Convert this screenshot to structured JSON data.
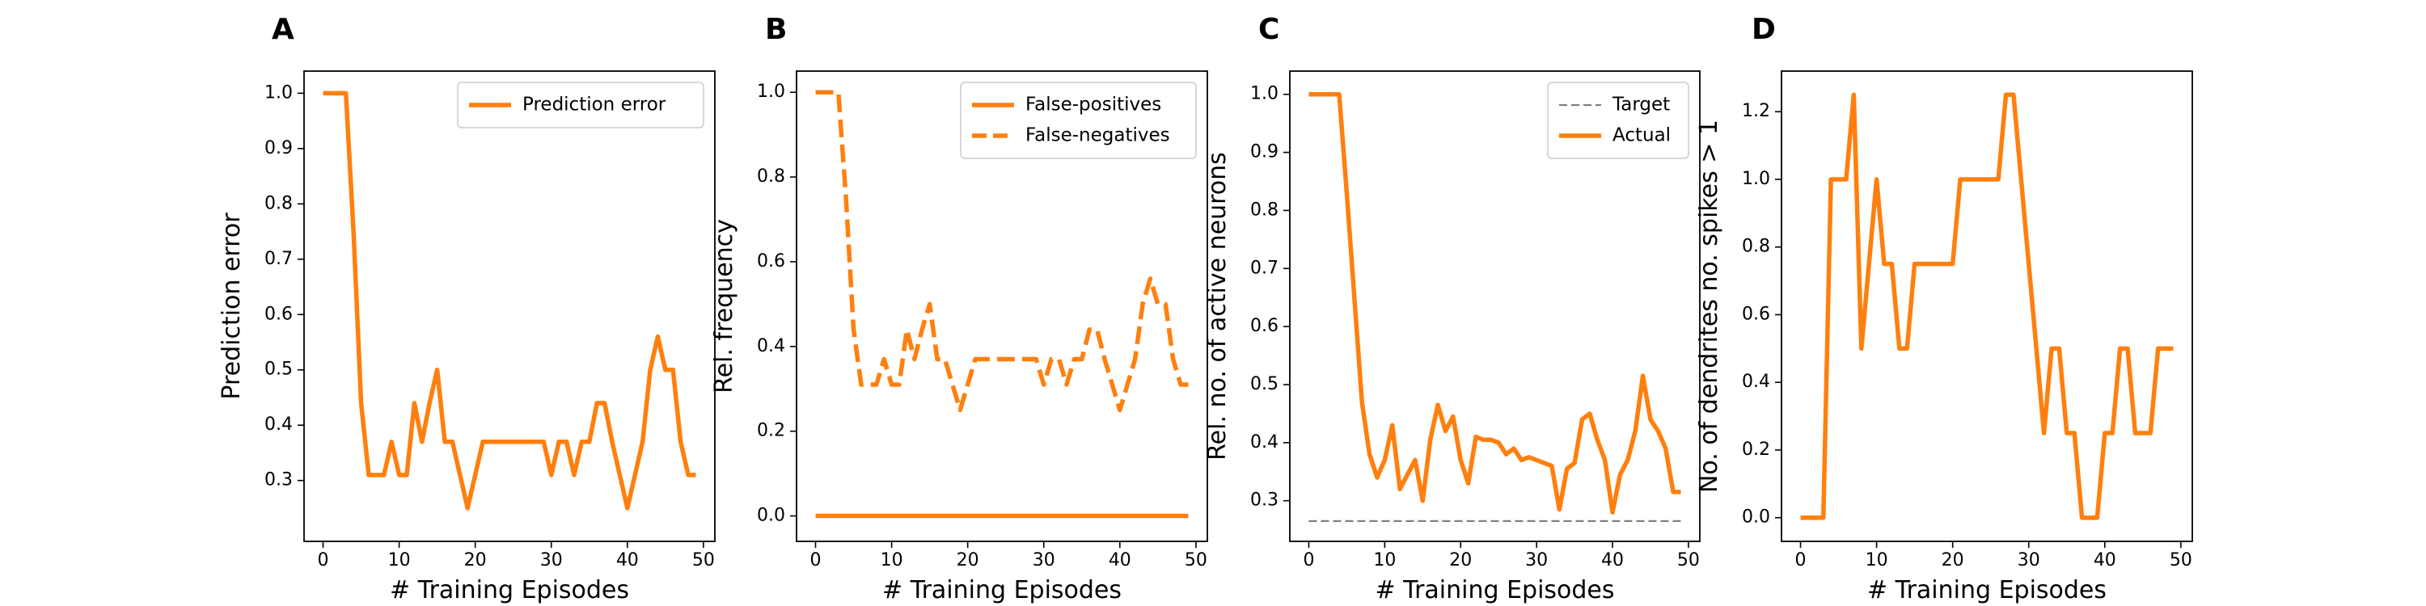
{
  "chart_data": [
    {
      "panel": "A",
      "type": "line",
      "xlabel": "# Training Episodes",
      "ylabel": "Prediction error",
      "xlim": [
        -2.5,
        51.5
      ],
      "ylim": [
        0.19,
        1.04
      ],
      "xticks": [
        0,
        10,
        20,
        30,
        40,
        50
      ],
      "yticks": [
        0.3,
        0.4,
        0.5,
        0.6,
        0.7,
        0.8,
        0.9,
        1.0
      ],
      "ytick_labels": [
        "0.3",
        "0.4",
        "0.5",
        "0.6",
        "0.7",
        "0.8",
        "0.9",
        "1.0"
      ],
      "legend_position": "upper right",
      "series": [
        {
          "name": "Prediction error",
          "color": "#ff7f0e",
          "style": "solid",
          "x": [
            0,
            1,
            2,
            3,
            4,
            5,
            6,
            7,
            8,
            9,
            10,
            11,
            12,
            13,
            14,
            15,
            16,
            17,
            18,
            19,
            20,
            21,
            22,
            23,
            24,
            25,
            26,
            27,
            28,
            29,
            30,
            31,
            32,
            33,
            34,
            35,
            36,
            37,
            38,
            39,
            40,
            41,
            42,
            43,
            44,
            45,
            46,
            47,
            48,
            49
          ],
          "values": [
            1.0,
            1.0,
            1.0,
            1.0,
            0.75,
            0.44,
            0.31,
            0.31,
            0.31,
            0.37,
            0.31,
            0.31,
            0.44,
            0.37,
            0.44,
            0.5,
            0.37,
            0.37,
            0.31,
            0.25,
            0.31,
            0.37,
            0.37,
            0.37,
            0.37,
            0.37,
            0.37,
            0.37,
            0.37,
            0.37,
            0.31,
            0.37,
            0.37,
            0.31,
            0.37,
            0.37,
            0.44,
            0.44,
            0.37,
            0.31,
            0.25,
            0.31,
            0.37,
            0.5,
            0.56,
            0.5,
            0.5,
            0.37,
            0.31,
            0.31
          ]
        }
      ]
    },
    {
      "panel": "B",
      "type": "line",
      "xlabel": "# Training Episodes",
      "ylabel": "Rel. frequency",
      "xlim": [
        -2.5,
        51.5
      ],
      "ylim": [
        -0.06,
        1.05
      ],
      "xticks": [
        0,
        10,
        20,
        30,
        40,
        50
      ],
      "yticks": [
        0.0,
        0.2,
        0.4,
        0.6,
        0.8,
        1.0
      ],
      "ytick_labels": [
        "0.0",
        "0.2",
        "0.4",
        "0.6",
        "0.8",
        "1.0"
      ],
      "legend_position": "upper right",
      "series": [
        {
          "name": "False-positives",
          "color": "#ff7f0e",
          "style": "solid",
          "x": [
            0,
            49
          ],
          "values": [
            0.0,
            0.0
          ]
        },
        {
          "name": "False-negatives",
          "color": "#ff7f0e",
          "style": "dashed",
          "x": [
            0,
            1,
            2,
            3,
            4,
            5,
            6,
            7,
            8,
            9,
            10,
            11,
            12,
            13,
            14,
            15,
            16,
            17,
            18,
            19,
            20,
            21,
            22,
            23,
            24,
            25,
            26,
            27,
            28,
            29,
            30,
            31,
            32,
            33,
            34,
            35,
            36,
            37,
            38,
            39,
            40,
            41,
            42,
            43,
            44,
            45,
            46,
            47,
            48,
            49
          ],
          "values": [
            1.0,
            1.0,
            1.0,
            1.0,
            0.75,
            0.44,
            0.31,
            0.31,
            0.31,
            0.37,
            0.31,
            0.31,
            0.44,
            0.37,
            0.44,
            0.5,
            0.37,
            0.37,
            0.31,
            0.25,
            0.31,
            0.37,
            0.37,
            0.37,
            0.37,
            0.37,
            0.37,
            0.37,
            0.37,
            0.37,
            0.31,
            0.37,
            0.37,
            0.31,
            0.37,
            0.37,
            0.44,
            0.44,
            0.37,
            0.31,
            0.25,
            0.31,
            0.37,
            0.5,
            0.56,
            0.5,
            0.5,
            0.37,
            0.31,
            0.31
          ]
        }
      ]
    },
    {
      "panel": "C",
      "type": "line",
      "xlabel": "# Training Episodes",
      "ylabel": "Rel. no. of active neurons",
      "xlim": [
        -2.5,
        51.5
      ],
      "ylim": [
        0.23,
        1.04
      ],
      "xticks": [
        0,
        10,
        20,
        30,
        40,
        50
      ],
      "yticks": [
        0.3,
        0.4,
        0.5,
        0.6,
        0.7,
        0.8,
        0.9,
        1.0
      ],
      "ytick_labels": [
        "0.3",
        "0.4",
        "0.5",
        "0.6",
        "0.7",
        "0.8",
        "0.9",
        "1.0"
      ],
      "legend_position": "upper right",
      "series": [
        {
          "name": "Target",
          "color": "#808080",
          "style": "dashed",
          "x": [
            0,
            49
          ],
          "values": [
            0.265,
            0.265
          ]
        },
        {
          "name": "Actual",
          "color": "#ff7f0e",
          "style": "solid",
          "x": [
            0,
            1,
            2,
            3,
            4,
            5,
            6,
            7,
            8,
            9,
            10,
            11,
            12,
            13,
            14,
            15,
            16,
            17,
            18,
            19,
            20,
            21,
            22,
            23,
            24,
            25,
            26,
            27,
            28,
            29,
            30,
            31,
            32,
            33,
            34,
            35,
            36,
            37,
            38,
            39,
            40,
            41,
            42,
            43,
            44,
            45,
            46,
            47,
            48,
            49
          ],
          "values": [
            1.0,
            1.0,
            1.0,
            1.0,
            1.0,
            0.83,
            0.65,
            0.47,
            0.38,
            0.34,
            0.37,
            0.43,
            0.32,
            0.345,
            0.37,
            0.3,
            0.405,
            0.465,
            0.42,
            0.445,
            0.37,
            0.33,
            0.41,
            0.405,
            0.405,
            0.4,
            0.38,
            0.39,
            0.37,
            0.375,
            0.37,
            0.365,
            0.36,
            0.285,
            0.355,
            0.365,
            0.44,
            0.45,
            0.405,
            0.37,
            0.28,
            0.345,
            0.37,
            0.42,
            0.515,
            0.44,
            0.42,
            0.39,
            0.315,
            0.315
          ]
        }
      ]
    },
    {
      "panel": "D",
      "type": "line",
      "xlabel": "# Training Episodes",
      "ylabel": "No. of dendrites no. spikes > 1",
      "xlim": [
        -2.5,
        51.5
      ],
      "ylim": [
        -0.07,
        1.32
      ],
      "xticks": [
        0,
        10,
        20,
        30,
        40,
        50
      ],
      "yticks": [
        0.0,
        0.2,
        0.4,
        0.6,
        0.8,
        1.0,
        1.2
      ],
      "ytick_labels": [
        "0.0",
        "0.2",
        "0.4",
        "0.6",
        "0.8",
        "1.0",
        "1.2"
      ],
      "legend_position": "none",
      "series": [
        {
          "name": "",
          "color": "#ff7f0e",
          "style": "solid",
          "x": [
            0,
            1,
            2,
            3,
            4,
            5,
            6,
            7,
            8,
            9,
            10,
            11,
            12,
            13,
            14,
            15,
            16,
            17,
            18,
            19,
            20,
            21,
            22,
            23,
            24,
            25,
            26,
            27,
            28,
            29,
            30,
            31,
            32,
            33,
            34,
            35,
            36,
            37,
            38,
            39,
            40,
            41,
            42,
            43,
            44,
            45,
            46,
            47,
            48,
            49
          ],
          "values": [
            0.0,
            0.0,
            0.0,
            0.0,
            1.0,
            1.0,
            1.0,
            1.25,
            0.5,
            0.75,
            1.0,
            0.75,
            0.75,
            0.5,
            0.5,
            0.75,
            0.75,
            0.75,
            0.75,
            0.75,
            0.75,
            1.0,
            1.0,
            1.0,
            1.0,
            1.0,
            1.0,
            1.25,
            1.25,
            1.0,
            0.75,
            0.5,
            0.25,
            0.5,
            0.5,
            0.25,
            0.25,
            0.0,
            0.0,
            0.0,
            0.25,
            0.25,
            0.5,
            0.5,
            0.25,
            0.25,
            0.25,
            0.5,
            0.5,
            0.5
          ]
        }
      ]
    }
  ]
}
